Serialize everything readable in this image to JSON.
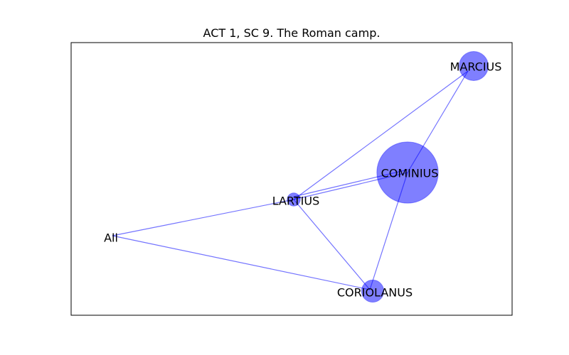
{
  "title": "ACT 1, SC 9. The Roman camp.",
  "colors": {
    "node_fill": "#0000ff",
    "edge": "#0000ff",
    "frame": "#000000"
  },
  "graph": {
    "nodes": [
      {
        "id": "MARCIUS",
        "label": "MARCIUS",
        "weight": 3.0
      },
      {
        "id": "COMINIUS",
        "label": "COMINIUS",
        "weight": 17.0
      },
      {
        "id": "LARTIUS",
        "label": "LARTIUS",
        "weight": 0.3
      },
      {
        "id": "All",
        "label": "All",
        "weight": 0.0
      },
      {
        "id": "CORIOLANUS",
        "label": "CORIOLANUS",
        "weight": 1.5
      }
    ],
    "edges": [
      {
        "source": "LARTIUS",
        "target": "MARCIUS"
      },
      {
        "source": "COMINIUS",
        "target": "MARCIUS"
      },
      {
        "source": "LARTIUS",
        "target": "COMINIUS"
      },
      {
        "source": "LARTIUS",
        "target": "COMINIUS"
      },
      {
        "source": "All",
        "target": "LARTIUS"
      },
      {
        "source": "All",
        "target": "CORIOLANUS"
      },
      {
        "source": "LARTIUS",
        "target": "CORIOLANUS"
      },
      {
        "source": "COMINIUS",
        "target": "CORIOLANUS"
      }
    ]
  }
}
